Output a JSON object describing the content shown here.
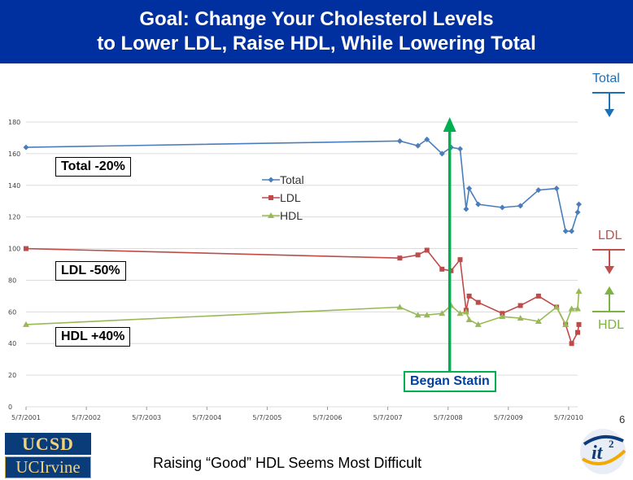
{
  "title": {
    "line1": "Goal: Change Your Cholesterol Levels",
    "line2": "to Lower LDL, Raise HDL, While Lowering Total"
  },
  "annotations": {
    "total_box": "Total -20%",
    "ldl_box": "LDL -50%",
    "hdl_box": "HDL +40%",
    "statin_box": "Began Statin",
    "side_total": "Total",
    "side_ldl": "LDL",
    "side_hdl": "HDL"
  },
  "colors": {
    "title_bg": "#0030a0",
    "total": "#4a7ebb",
    "ldl": "#be4b48",
    "hdl": "#98b954",
    "statin": "#00b050",
    "side_total": "#1f6fb5",
    "side_ldl": "#c0504d",
    "side_hdl": "#7cb342"
  },
  "footer": {
    "text": "Raising “Good” HDL Seems Most Difficult",
    "page_number": "6"
  },
  "logos": {
    "ucsd": "UCSD",
    "uci": "UCIrvine",
    "it2": "it²"
  },
  "chart_data": {
    "type": "line",
    "ylim": [
      0,
      180
    ],
    "yticks": [
      0,
      20,
      40,
      60,
      80,
      100,
      120,
      140,
      160,
      180
    ],
    "xlim": [
      2001.0,
      2010.15
    ],
    "xtick_labels": [
      "5/7/2001",
      "5/7/2002",
      "5/7/2003",
      "5/7/2004",
      "5/7/2005",
      "5/7/2006",
      "5/7/2007",
      "5/7/2008",
      "5/7/2009",
      "5/7/2010"
    ],
    "legend": [
      "Total",
      "LDL",
      "HDL"
    ],
    "statin_start": 2008.0,
    "series": [
      {
        "name": "Total",
        "x": [
          2001.0,
          2007.2,
          2007.5,
          2007.65,
          2007.9,
          2008.05,
          2008.2,
          2008.3,
          2008.35,
          2008.5,
          2008.9,
          2009.2,
          2009.5,
          2009.8,
          2009.95,
          2010.05,
          2010.15,
          2010.17
        ],
        "values": [
          164,
          168,
          165,
          169,
          160,
          164,
          163,
          125,
          138,
          128,
          126,
          127,
          137,
          138,
          111,
          111,
          123,
          128
        ]
      },
      {
        "name": "LDL",
        "x": [
          2001.0,
          2007.2,
          2007.5,
          2007.65,
          2007.9,
          2008.05,
          2008.2,
          2008.3,
          2008.35,
          2008.5,
          2008.9,
          2009.2,
          2009.5,
          2009.8,
          2009.95,
          2010.05,
          2010.15,
          2010.17
        ],
        "values": [
          100,
          94,
          96,
          99,
          87,
          86,
          93,
          61,
          70,
          66,
          59,
          64,
          70,
          63,
          52,
          40,
          47,
          52
        ]
      },
      {
        "name": "HDL",
        "x": [
          2001.0,
          2007.2,
          2007.5,
          2007.65,
          2007.9,
          2008.05,
          2008.2,
          2008.3,
          2008.35,
          2008.5,
          2008.9,
          2009.2,
          2009.5,
          2009.8,
          2009.95,
          2010.05,
          2010.15,
          2010.17
        ],
        "values": [
          52,
          63,
          58,
          58,
          59,
          64,
          59,
          60,
          55,
          52,
          57,
          56,
          54,
          63,
          52,
          62,
          62,
          73
        ]
      }
    ]
  }
}
